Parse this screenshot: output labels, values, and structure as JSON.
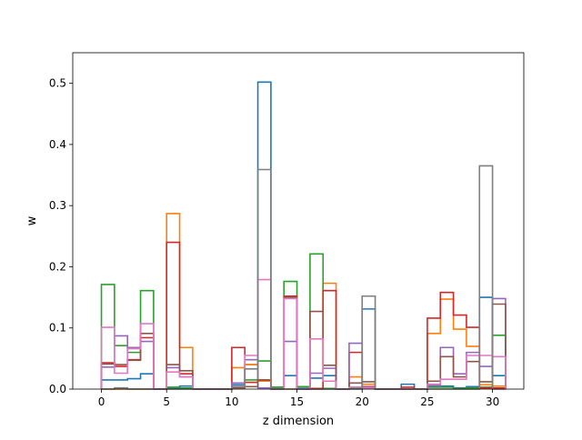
{
  "chart_data": {
    "type": "step",
    "xlabel": "z dimension",
    "ylabel": "w",
    "xlim": [
      -2.2,
      32.4
    ],
    "ylim": [
      0,
      0.55
    ],
    "xticks": [
      0,
      5,
      10,
      15,
      20,
      25,
      30
    ],
    "yticks": [
      0.0,
      0.1,
      0.2,
      0.3,
      0.4,
      0.5
    ],
    "xtick_labels": [
      "0",
      "5",
      "10",
      "15",
      "20",
      "25",
      "30"
    ],
    "ytick_labels": [
      "0.0",
      "0.1",
      "0.2",
      "0.3",
      "0.4",
      "0.5"
    ],
    "grid": false,
    "bin_edges": [
      0,
      1,
      2,
      3,
      4,
      5,
      6,
      7,
      8,
      9,
      10,
      11,
      12,
      13,
      14,
      15,
      16,
      17,
      18,
      19,
      20,
      21,
      22,
      23,
      24,
      25,
      26,
      27,
      28,
      29,
      30,
      31
    ],
    "series": [
      {
        "color": "#1f77b4",
        "values": [
          0.015,
          0.015,
          0.017,
          0.025,
          0,
          0.002,
          0.005,
          0,
          0,
          0,
          0.007,
          0.04,
          0.502,
          0.003,
          0.022,
          0.003,
          0.018,
          0.022,
          0,
          0.003,
          0.131,
          0,
          0,
          0.008,
          0,
          0.004,
          0.005,
          0.002,
          0.004,
          0.15,
          0.022
        ]
      },
      {
        "color": "#ff7f0e",
        "values": [
          0,
          0,
          0,
          0,
          0,
          0.287,
          0.068,
          0,
          0,
          0,
          0.035,
          0.04,
          0.013,
          0,
          0,
          0,
          0,
          0.173,
          0,
          0.02,
          0.008,
          0,
          0,
          0,
          0,
          0.091,
          0.147,
          0.098,
          0.07,
          0.007,
          0.005
        ]
      },
      {
        "color": "#2ca02c",
        "values": [
          0.171,
          0.071,
          0.06,
          0.161,
          0,
          0.003,
          0.002,
          0,
          0,
          0,
          0.002,
          0.015,
          0.046,
          0.003,
          0.176,
          0.004,
          0.221,
          0.001,
          0,
          0.001,
          0.001,
          0,
          0,
          0,
          0,
          0.003,
          0.003,
          0.001,
          0.002,
          0.003,
          0.088
        ]
      },
      {
        "color": "#d62728",
        "values": [
          0.043,
          0.037,
          0.048,
          0.084,
          0,
          0.24,
          0.025,
          0,
          0,
          0,
          0.068,
          0.011,
          0.015,
          0,
          0.152,
          0,
          0.001,
          0.161,
          0,
          0.06,
          0.004,
          0,
          0,
          0.003,
          0,
          0.116,
          0.158,
          0.121,
          0.101,
          0.002,
          0.002
        ]
      },
      {
        "color": "#9467bd",
        "values": [
          0.036,
          0.087,
          0.068,
          0.078,
          0,
          0.035,
          0.02,
          0,
          0,
          0,
          0.01,
          0.048,
          0.002,
          0,
          0.078,
          0,
          0.026,
          0.034,
          0,
          0.075,
          0.003,
          0,
          0,
          0,
          0,
          0.006,
          0.068,
          0.025,
          0.06,
          0.037,
          0.148
        ]
      },
      {
        "color": "#8c564b",
        "values": [
          0.041,
          0.04,
          0.047,
          0.091,
          0,
          0.04,
          0.03,
          0,
          0,
          0,
          0.002,
          0.004,
          0.015,
          0,
          0.15,
          0,
          0.127,
          0.039,
          0,
          0.01,
          0.012,
          0,
          0,
          0,
          0,
          0.013,
          0.053,
          0.02,
          0.045,
          0.012,
          0.139
        ]
      },
      {
        "color": "#e377c2",
        "values": [
          0.101,
          0.026,
          0.066,
          0.107,
          0,
          0.028,
          0.02,
          0,
          0,
          0,
          0.004,
          0.055,
          0.179,
          0,
          0.148,
          0,
          0.082,
          0.013,
          0,
          0.003,
          0.002,
          0,
          0,
          0,
          0,
          0.008,
          0.016,
          0.016,
          0.055,
          0.055,
          0.053
        ]
      },
      {
        "color": "#7f7f7f",
        "values": [
          0,
          0.002,
          0,
          0,
          0,
          0,
          0,
          0,
          0,
          0,
          0.004,
          0.033,
          0.359,
          0,
          0,
          0,
          0,
          0,
          0,
          0,
          0.152,
          0,
          0,
          0,
          0,
          0,
          0,
          0,
          0,
          0.365,
          0
        ]
      }
    ]
  }
}
